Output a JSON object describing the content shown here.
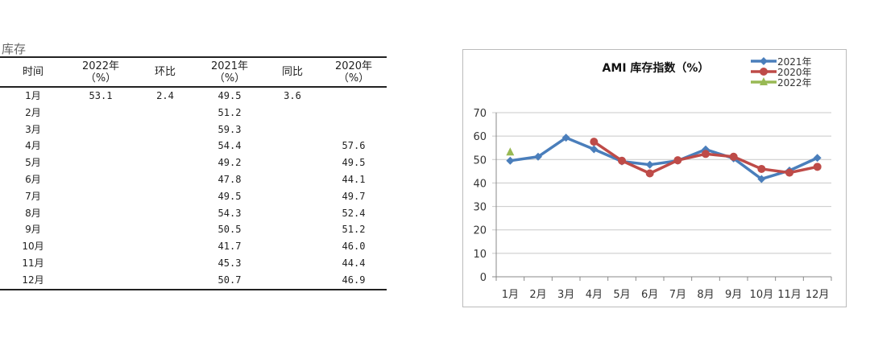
{
  "section_title": "库存",
  "table": {
    "headers": [
      [
        "时间",
        ""
      ],
      [
        "2022年",
        "（%）"
      ],
      [
        "环比",
        ""
      ],
      [
        "2021年",
        "（%）"
      ],
      [
        "同比",
        ""
      ],
      [
        "2020年",
        "（%）"
      ]
    ],
    "rows": [
      [
        "1月",
        "53.1",
        "2.4",
        "49.5",
        "3.6",
        ""
      ],
      [
        "2月",
        "",
        "",
        "51.2",
        "",
        ""
      ],
      [
        "3月",
        "",
        "",
        "59.3",
        "",
        ""
      ],
      [
        "4月",
        "",
        "",
        "54.4",
        "",
        "57.6"
      ],
      [
        "5月",
        "",
        "",
        "49.2",
        "",
        "49.5"
      ],
      [
        "6月",
        "",
        "",
        "47.8",
        "",
        "44.1"
      ],
      [
        "7月",
        "",
        "",
        "49.5",
        "",
        "49.7"
      ],
      [
        "8月",
        "",
        "",
        "54.3",
        "",
        "52.4"
      ],
      [
        "9月",
        "",
        "",
        "50.5",
        "",
        "51.2"
      ],
      [
        "10月",
        "",
        "",
        "41.7",
        "",
        "46.0"
      ],
      [
        "11月",
        "",
        "",
        "45.3",
        "",
        "44.4"
      ],
      [
        "12月",
        "",
        "",
        "50.7",
        "",
        "46.9"
      ]
    ]
  },
  "chart_data": {
    "type": "line",
    "title": "AMI 库存指数（%）",
    "categories": [
      "1月",
      "2月",
      "3月",
      "4月",
      "5月",
      "6月",
      "7月",
      "8月",
      "9月",
      "10月",
      "11月",
      "12月"
    ],
    "ylim": [
      0,
      70
    ],
    "yticks": [
      "0",
      "10",
      "20",
      "30",
      "40",
      "50",
      "60",
      "70"
    ],
    "grid": true,
    "legend_position": "top-right",
    "series": [
      {
        "name": "2021年",
        "color": "#4a7ebb",
        "marker": "diamond",
        "values": [
          49.5,
          51.2,
          59.3,
          54.4,
          49.2,
          47.8,
          49.5,
          54.3,
          50.5,
          41.7,
          45.3,
          50.7
        ]
      },
      {
        "name": "2020年",
        "color": "#be4b48",
        "marker": "circle",
        "values": [
          null,
          null,
          null,
          57.6,
          49.5,
          44.1,
          49.7,
          52.4,
          51.2,
          46.0,
          44.4,
          46.9
        ]
      },
      {
        "name": "2022年",
        "color": "#98b954",
        "marker": "triangle",
        "values": [
          53.1,
          null,
          null,
          null,
          null,
          null,
          null,
          null,
          null,
          null,
          null,
          null
        ]
      }
    ]
  }
}
